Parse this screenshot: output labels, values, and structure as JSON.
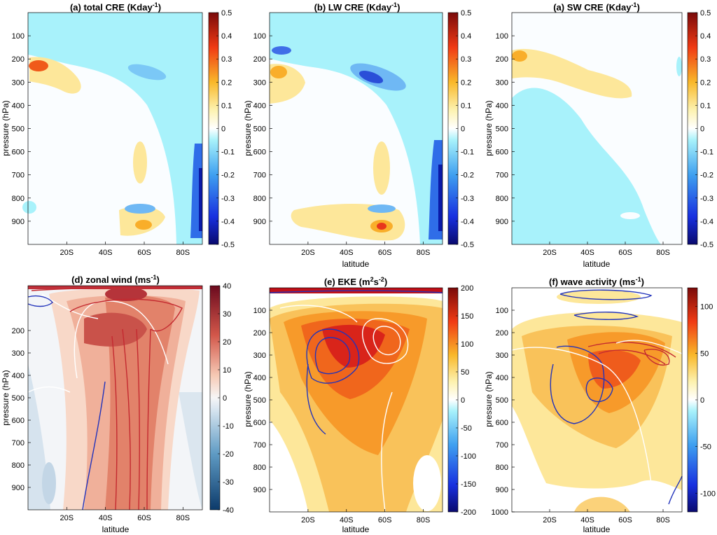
{
  "chart_data": [
    {
      "type": "heatmap",
      "id": "a",
      "title": "(a) total CRE (Kday",
      "title_sup": "-1",
      "xlabel": "",
      "ylabel": "pressure (hPa)",
      "xticks": [
        "20S",
        "40S",
        "60S",
        "80S"
      ],
      "yticks": [
        "100",
        "200",
        "300",
        "400",
        "500",
        "600",
        "700",
        "800",
        "900"
      ],
      "colorbar": {
        "ticks": [
          "0.5",
          "0.4",
          "0.3",
          "0.2",
          "0.1",
          "0",
          "-0.1",
          "-0.2",
          "-0.3",
          "-0.4",
          "-0.5"
        ],
        "range": [
          -0.5,
          0.5
        ],
        "palette": "blue-white-red"
      }
    },
    {
      "type": "heatmap",
      "id": "b",
      "title": "(b) LW CRE (Kday",
      "title_sup": "-1",
      "xlabel": "latitude",
      "ylabel": "pressure (hPa)",
      "xticks": [
        "20S",
        "40S",
        "60S",
        "80S"
      ],
      "yticks": [
        "100",
        "200",
        "300",
        "400",
        "500",
        "600",
        "700",
        "800",
        "900"
      ],
      "colorbar": {
        "ticks": [
          "0.5",
          "0.4",
          "0.3",
          "0.2",
          "0.1",
          "0",
          "-0.1",
          "-0.2",
          "-0.3",
          "-0.4",
          "-0.5"
        ],
        "range": [
          -0.5,
          0.5
        ],
        "palette": "blue-white-red"
      }
    },
    {
      "type": "heatmap",
      "id": "c",
      "title": "(a) SW CRE (Kday",
      "title_sup": "-1",
      "xlabel": "latitude",
      "ylabel": "pressure (hPa)",
      "xticks": [
        "20S",
        "40S",
        "60S",
        "80S"
      ],
      "yticks": [
        "100",
        "200",
        "300",
        "400",
        "500",
        "600",
        "700",
        "800",
        "900"
      ],
      "colorbar": {
        "ticks": [
          "0.5",
          "0.4",
          "0.3",
          "0.2",
          "0.1",
          "0",
          "-0.1",
          "-0.2",
          "-0.3",
          "-0.4",
          "-0.5"
        ],
        "range": [
          -0.5,
          0.5
        ],
        "palette": "blue-white-red"
      }
    },
    {
      "type": "heatmap",
      "id": "d",
      "title": "(d) zonal wind (ms",
      "title_sup": "-1",
      "xlabel": "latitude",
      "ylabel": "pressure (hPa)",
      "xticks": [
        "20S",
        "40S",
        "60S",
        "80S"
      ],
      "yticks": [
        "200",
        "300",
        "400",
        "500",
        "600",
        "700",
        "800",
        "900"
      ],
      "colorbar": {
        "ticks": [
          "40",
          "30",
          "20",
          "10",
          "0",
          "-10",
          "-20",
          "-30",
          "-40"
        ],
        "range": [
          -40,
          40
        ],
        "palette": "blue-white-red-muted"
      }
    },
    {
      "type": "heatmap",
      "id": "e",
      "title": "(e) EKE (m",
      "title_sup": "2",
      "title_mid": "s",
      "title_sup2": "-2",
      "xlabel": "latitude",
      "ylabel": "pressure (hPa)",
      "xticks": [
        "20S",
        "40S",
        "60S",
        "80S"
      ],
      "yticks": [
        "100",
        "200",
        "300",
        "400",
        "500",
        "600",
        "700",
        "800",
        "900"
      ],
      "colorbar": {
        "ticks": [
          "200",
          "150",
          "100",
          "50",
          "0",
          "-50",
          "-100",
          "-150",
          "-200"
        ],
        "range": [
          -200,
          200
        ],
        "palette": "blue-white-red"
      }
    },
    {
      "type": "heatmap",
      "id": "f",
      "title": "(f) wave activity (ms",
      "title_sup": "-1",
      "xlabel": "latitude",
      "ylabel": "pressure (hPa)",
      "xticks": [
        "20S",
        "40S",
        "60S",
        "80S"
      ],
      "yticks": [
        "100",
        "200",
        "300",
        "400",
        "500",
        "600",
        "700",
        "800",
        "900",
        "1000"
      ],
      "colorbar": {
        "ticks": [
          "100",
          "50",
          "0",
          "-50",
          "-100"
        ],
        "range": [
          -120,
          120
        ],
        "palette": "blue-white-red"
      }
    }
  ],
  "colors": {
    "cold_strong": "#0a1aa8",
    "cold": "#3f8ef0",
    "cold_light": "#a8f2fb",
    "warm_light": "#fde79a",
    "warm": "#f9ae2a",
    "warm_strong": "#e8361c"
  }
}
